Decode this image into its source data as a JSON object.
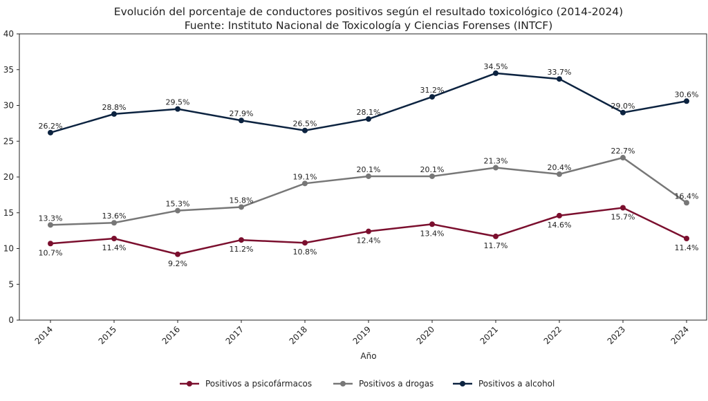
{
  "chart_data": {
    "type": "line",
    "title": "Evolución del porcentaje de conductores positivos según el resultado toxicológico (2014-2024)",
    "subtitle": "Fuente: Instituto Nacional de Toxicología y Ciencias Forenses (INTCF)",
    "xlabel": "Año",
    "ylabel": "",
    "x": [
      "2014",
      "2015",
      "2016",
      "2017",
      "2018",
      "2019",
      "2020",
      "2021",
      "2022",
      "2023",
      "2024"
    ],
    "ylim": [
      0,
      40
    ],
    "yticks": [
      0,
      5,
      10,
      15,
      20,
      25,
      30,
      35,
      40
    ],
    "grid": false,
    "legend": "bottom-center",
    "series": [
      {
        "name": "Positivos a psicofármacos",
        "color": "#7b0f2e",
        "label_pos": "below",
        "values": [
          10.7,
          11.4,
          9.2,
          11.2,
          10.8,
          12.4,
          13.4,
          11.7,
          14.6,
          15.7,
          11.4
        ]
      },
      {
        "name": "Positivos a drogas",
        "color": "#777777",
        "label_pos": "above",
        "values": [
          13.3,
          13.6,
          15.3,
          15.8,
          19.1,
          20.1,
          20.1,
          21.3,
          20.4,
          22.7,
          16.4
        ]
      },
      {
        "name": "Positivos a alcohol",
        "color": "#0c2340",
        "label_pos": "above",
        "values": [
          26.2,
          28.8,
          29.5,
          27.9,
          26.5,
          28.1,
          31.2,
          34.5,
          33.7,
          29.0,
          30.6
        ]
      }
    ]
  }
}
